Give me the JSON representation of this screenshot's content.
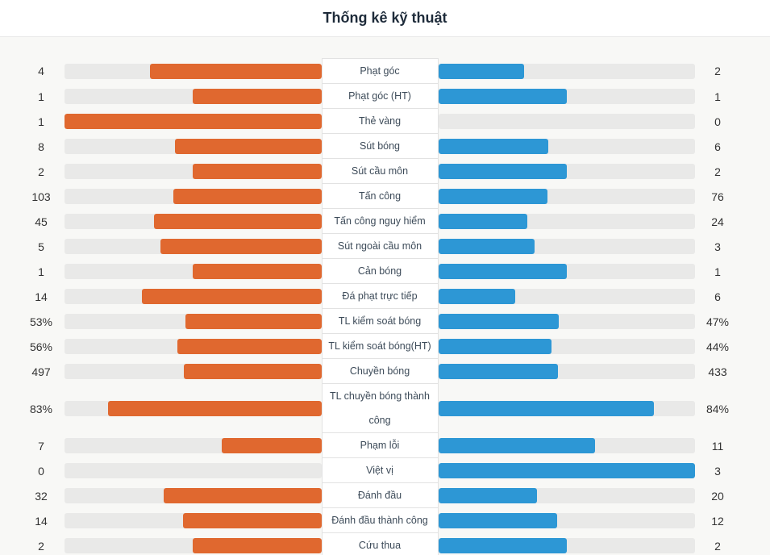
{
  "header": {
    "title": "Thống kê kỹ thuật"
  },
  "colors": {
    "home": "#e0682f",
    "away": "#2d97d5",
    "track": "#e9e9e8",
    "section_bg": "#f8f8f6",
    "label_text": "#3d4b59",
    "value_text": "#333333",
    "title_text": "#1e2b3a",
    "cell_border": "#e2e2e2",
    "cell_bg": "#ffffff",
    "header_border": "#e8e8e8"
  },
  "rows": [
    {
      "left": "4",
      "label": "Phạt góc",
      "right": "2"
    },
    {
      "left": "1",
      "label": "Phạt góc (HT)",
      "right": "1"
    },
    {
      "left": "1",
      "label": "Thẻ vàng",
      "right": "0"
    },
    {
      "left": "8",
      "label": "Sút bóng",
      "right": "6"
    },
    {
      "left": "2",
      "label": "Sút cầu môn",
      "right": "2"
    },
    {
      "left": "103",
      "label": "Tấn công",
      "right": "76"
    },
    {
      "left": "45",
      "label": "Tấn công nguy hiểm",
      "right": "24"
    },
    {
      "left": "5",
      "label": "Sút ngoài cầu môn",
      "right": "3"
    },
    {
      "left": "1",
      "label": "Cản bóng",
      "right": "1"
    },
    {
      "left": "14",
      "label": "Đá phạt trực tiếp",
      "right": "6"
    },
    {
      "left": "53%",
      "label": "TL kiểm soát bóng",
      "right": "47%"
    },
    {
      "left": "56%",
      "label": "TL kiểm soát bóng(HT)",
      "right": "44%"
    },
    {
      "left": "497",
      "label": "Chuyền bóng",
      "right": "433"
    },
    {
      "left": "83%",
      "label": "TL chuyền bóng thành công",
      "right": "84%"
    },
    {
      "left": "7",
      "label": "Phạm lỗi",
      "right": "11"
    },
    {
      "left": "0",
      "label": "Việt vị",
      "right": "3"
    },
    {
      "left": "32",
      "label": "Đánh đầu",
      "right": "20"
    },
    {
      "left": "14",
      "label": "Đánh đầu thành công",
      "right": "12"
    },
    {
      "left": "2",
      "label": "Cứu thua",
      "right": "2"
    }
  ],
  "chart_data": {
    "type": "bar",
    "orientation": "horizontal-bilateral",
    "title": "Thống kê kỹ thuật",
    "categories": [
      "Phạt góc",
      "Phạt góc (HT)",
      "Thẻ vàng",
      "Sút bóng",
      "Sút cầu môn",
      "Tấn công",
      "Tấn công nguy hiểm",
      "Sút ngoài cầu môn",
      "Cản bóng",
      "Đá phạt trực tiếp",
      "TL kiểm soát bóng",
      "TL kiểm soát bóng(HT)",
      "Chuyền bóng",
      "TL chuyền bóng thành công",
      "Phạm lỗi",
      "Việt vị",
      "Đánh đầu",
      "Đánh đầu thành công",
      "Cứu thua"
    ],
    "series": [
      {
        "name": "home-left",
        "color": "#e0682f",
        "values": [
          "4",
          "1",
          "1",
          "8",
          "2",
          "103",
          "45",
          "5",
          "1",
          "14",
          "53%",
          "56%",
          "497",
          "83%",
          "7",
          "0",
          "32",
          "14",
          "2"
        ]
      },
      {
        "name": "away-right",
        "color": "#2d97d5",
        "values": [
          "2",
          "1",
          "0",
          "6",
          "2",
          "76",
          "24",
          "3",
          "1",
          "6",
          "47%",
          "44%",
          "433",
          "84%",
          "11",
          "3",
          "20",
          "12",
          "2"
        ]
      }
    ],
    "legend": "none",
    "notes": "Bars grow outward from the central label column. Percent rows fill = percent value; count rows fill = value / (left + right) of the row."
  }
}
